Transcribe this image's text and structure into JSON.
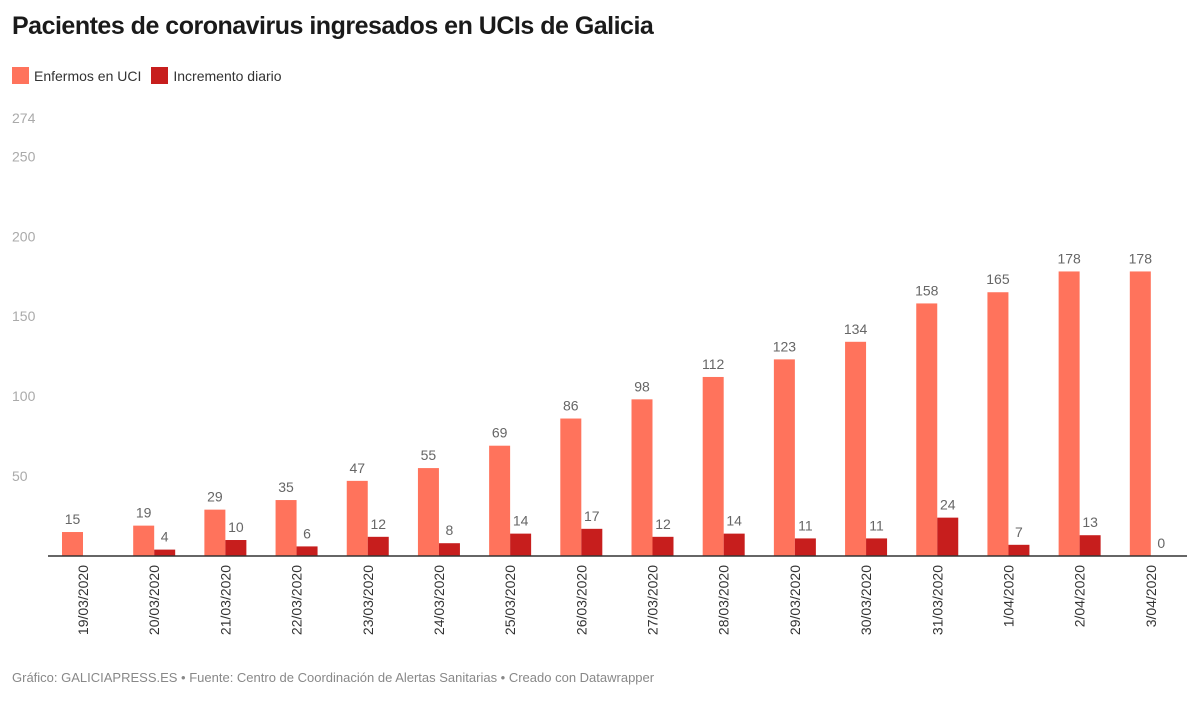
{
  "chart_data": {
    "type": "bar",
    "title": "Pacientes de coronavirus ingresados en UCIs de Galicia",
    "categories": [
      "19/03/2020",
      "20/03/2020",
      "21/03/2020",
      "22/03/2020",
      "23/03/2020",
      "24/03/2020",
      "25/03/2020",
      "26/03/2020",
      "27/03/2020",
      "28/03/2020",
      "29/03/2020",
      "30/03/2020",
      "31/03/2020",
      "1/04/2020",
      "2/04/2020",
      "3/04/2020"
    ],
    "series": [
      {
        "name": "Enfermos en UCI",
        "color": "#ff735c",
        "values": [
          15,
          19,
          29,
          35,
          47,
          55,
          69,
          86,
          98,
          112,
          123,
          134,
          158,
          165,
          178,
          178
        ]
      },
      {
        "name": "Incremento diario",
        "color": "#c71e1d",
        "values": [
          null,
          4,
          10,
          6,
          12,
          8,
          14,
          17,
          12,
          14,
          11,
          11,
          24,
          7,
          13,
          0
        ]
      }
    ],
    "yticks": [
      50,
      100,
      150,
      200,
      250,
      274
    ],
    "ylim": [
      0,
      274
    ],
    "xlabel": "",
    "ylabel": "",
    "grid": false,
    "legend": "top-left"
  },
  "footer": "Gráfico: GALICIAPRESS.ES • Fuente: Centro de Coordinación de Alertas Sanitarias • Creado con Datawrapper"
}
